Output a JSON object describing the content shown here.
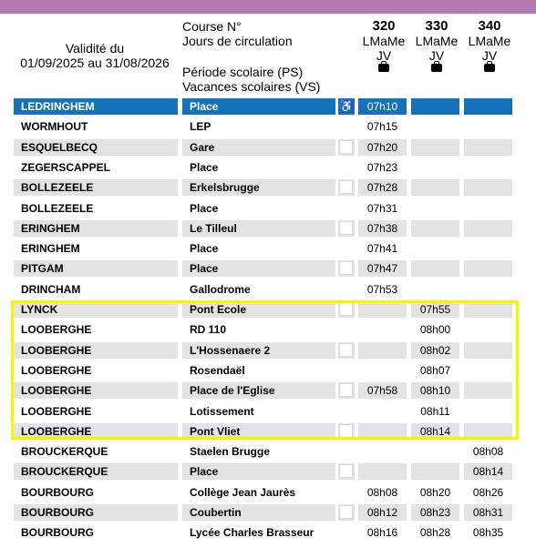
{
  "header": {
    "validity_line1": "Validité du",
    "validity_line2": "01/09/2025 au 31/08/2026",
    "course_label": "Course N°",
    "days_label": "Jours de circulation",
    "ps_label": "Période scolaire (PS)",
    "vs_label": "Vacances scolaires (VS)",
    "courses": [
      {
        "number": "320",
        "days1": "LMaMe",
        "days2": "JV",
        "icon": "schoolbag-icon"
      },
      {
        "number": "330",
        "days1": "LMaMe",
        "days2": "JV",
        "icon": "schoolbag-icon"
      },
      {
        "number": "340",
        "days1": "LMaMe",
        "days2": "JV",
        "icon": "schoolbag-icon"
      }
    ]
  },
  "colors": {
    "topbar": "#b47bb2",
    "highlight": "#1771b8",
    "shade": "#e3e3e3",
    "frame": "#fff200"
  },
  "rows": [
    {
      "town": "LEDRINGHEM",
      "stop": "Place",
      "times": [
        "07h10",
        "",
        ""
      ],
      "accessible": true
    },
    {
      "town": "WORMHOUT",
      "stop": "LEP",
      "times": [
        "07h15",
        "",
        ""
      ]
    },
    {
      "town": "ESQUELBECQ",
      "stop": "Gare",
      "times": [
        "07h20",
        "",
        ""
      ]
    },
    {
      "town": "ZEGERSCAPPEL",
      "stop": "Place",
      "times": [
        "07h23",
        "",
        ""
      ]
    },
    {
      "town": "BOLLEZEELE",
      "stop": "Erkelsbrugge",
      "times": [
        "07h28",
        "",
        ""
      ]
    },
    {
      "town": "BOLLEZEELE",
      "stop": "Place",
      "times": [
        "07h31",
        "",
        ""
      ]
    },
    {
      "town": "ERINGHEM",
      "stop": "Le Tilleul",
      "times": [
        "07h38",
        "",
        ""
      ]
    },
    {
      "town": "ERINGHEM",
      "stop": "Place",
      "times": [
        "07h41",
        "",
        ""
      ]
    },
    {
      "town": "PITGAM",
      "stop": "Place",
      "times": [
        "07h47",
        "",
        ""
      ]
    },
    {
      "town": "DRINCHAM",
      "stop": "Gallodrome",
      "times": [
        "07h53",
        "",
        ""
      ]
    },
    {
      "town": "LYNCK",
      "stop": "Pont Ecole",
      "times": [
        "",
        "07h55",
        ""
      ]
    },
    {
      "town": "LOOBERGHE",
      "stop": "RD 110",
      "times": [
        "",
        "08h00",
        ""
      ]
    },
    {
      "town": "LOOBERGHE",
      "stop": "L'Hossenaere 2",
      "times": [
        "",
        "08h02",
        ""
      ]
    },
    {
      "town": "LOOBERGHE",
      "stop": "Rosendaël",
      "times": [
        "",
        "08h07",
        ""
      ]
    },
    {
      "town": "LOOBERGHE",
      "stop": "Place de l'Eglise",
      "times": [
        "07h58",
        "08h10",
        ""
      ]
    },
    {
      "town": "LOOBERGHE",
      "stop": "Lotissement",
      "times": [
        "",
        "08h11",
        ""
      ]
    },
    {
      "town": "LOOBERGHE",
      "stop": "Pont Vliet",
      "times": [
        "",
        "08h14",
        ""
      ]
    },
    {
      "town": "BROUCKERQUE",
      "stop": "Staelen Brugge",
      "times": [
        "",
        "",
        "08h08"
      ]
    },
    {
      "town": "BROUCKERQUE",
      "stop": "Place",
      "times": [
        "",
        "",
        "08h14"
      ]
    },
    {
      "town": "BOURBOURG",
      "stop": "Collège Jean Jaurès",
      "times": [
        "08h08",
        "08h20",
        "08h26"
      ]
    },
    {
      "town": "BOURBOURG",
      "stop": "Coubertin",
      "times": [
        "08h12",
        "08h23",
        "08h31"
      ]
    },
    {
      "town": "BOURBOURG",
      "stop": "Lycée Charles Brasseur",
      "times": [
        "08h16",
        "08h28",
        "08h35"
      ]
    }
  ]
}
